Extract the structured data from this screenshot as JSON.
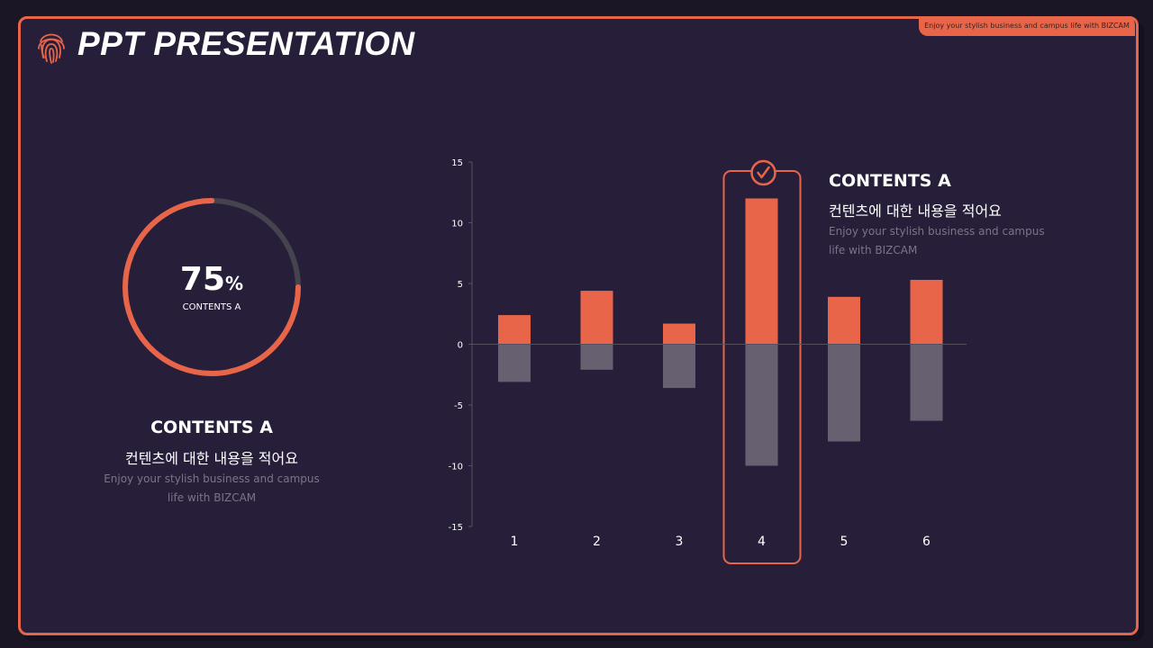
{
  "header": {
    "title": "PPT PRESENTATION",
    "tagline": "Enjoy your stylish business and campus life with BIZCAM",
    "logo_icon": "fingerprint-icon"
  },
  "colors": {
    "accent": "#e8654a",
    "background": "#271f39",
    "negative": "#666070",
    "track": "#45434d"
  },
  "gauge": {
    "value": 75,
    "value_text": "75",
    "unit": "%",
    "label": "CONTENTS A"
  },
  "left_block": {
    "title": "CONTENTS A",
    "subtitle": "컨텐츠에 대한 내용을 적어요",
    "description": "Enjoy your stylish business and campus life with BIZCAM"
  },
  "right_block": {
    "title": "CONTENTS A",
    "subtitle": "컨텐츠에 대한 내용을 적어요",
    "description": "Enjoy your stylish business and campus life with BIZCAM"
  },
  "chart_data": {
    "type": "bar",
    "categories": [
      "1",
      "2",
      "3",
      "4",
      "5",
      "6"
    ],
    "series": [
      {
        "values": [
          2.4,
          4.4,
          1.7,
          12,
          3.9,
          5.3
        ],
        "color": "#e8654a"
      },
      {
        "values": [
          -3.1,
          -2.1,
          -3.6,
          -10,
          -8,
          -6.3
        ],
        "color": "#666070"
      }
    ],
    "ylim": [
      -15,
      15
    ],
    "yticks": [
      15,
      10,
      5,
      0,
      -5,
      -10,
      -15
    ],
    "highlight_category": "4",
    "highlight_icon": "check-circle-icon"
  }
}
